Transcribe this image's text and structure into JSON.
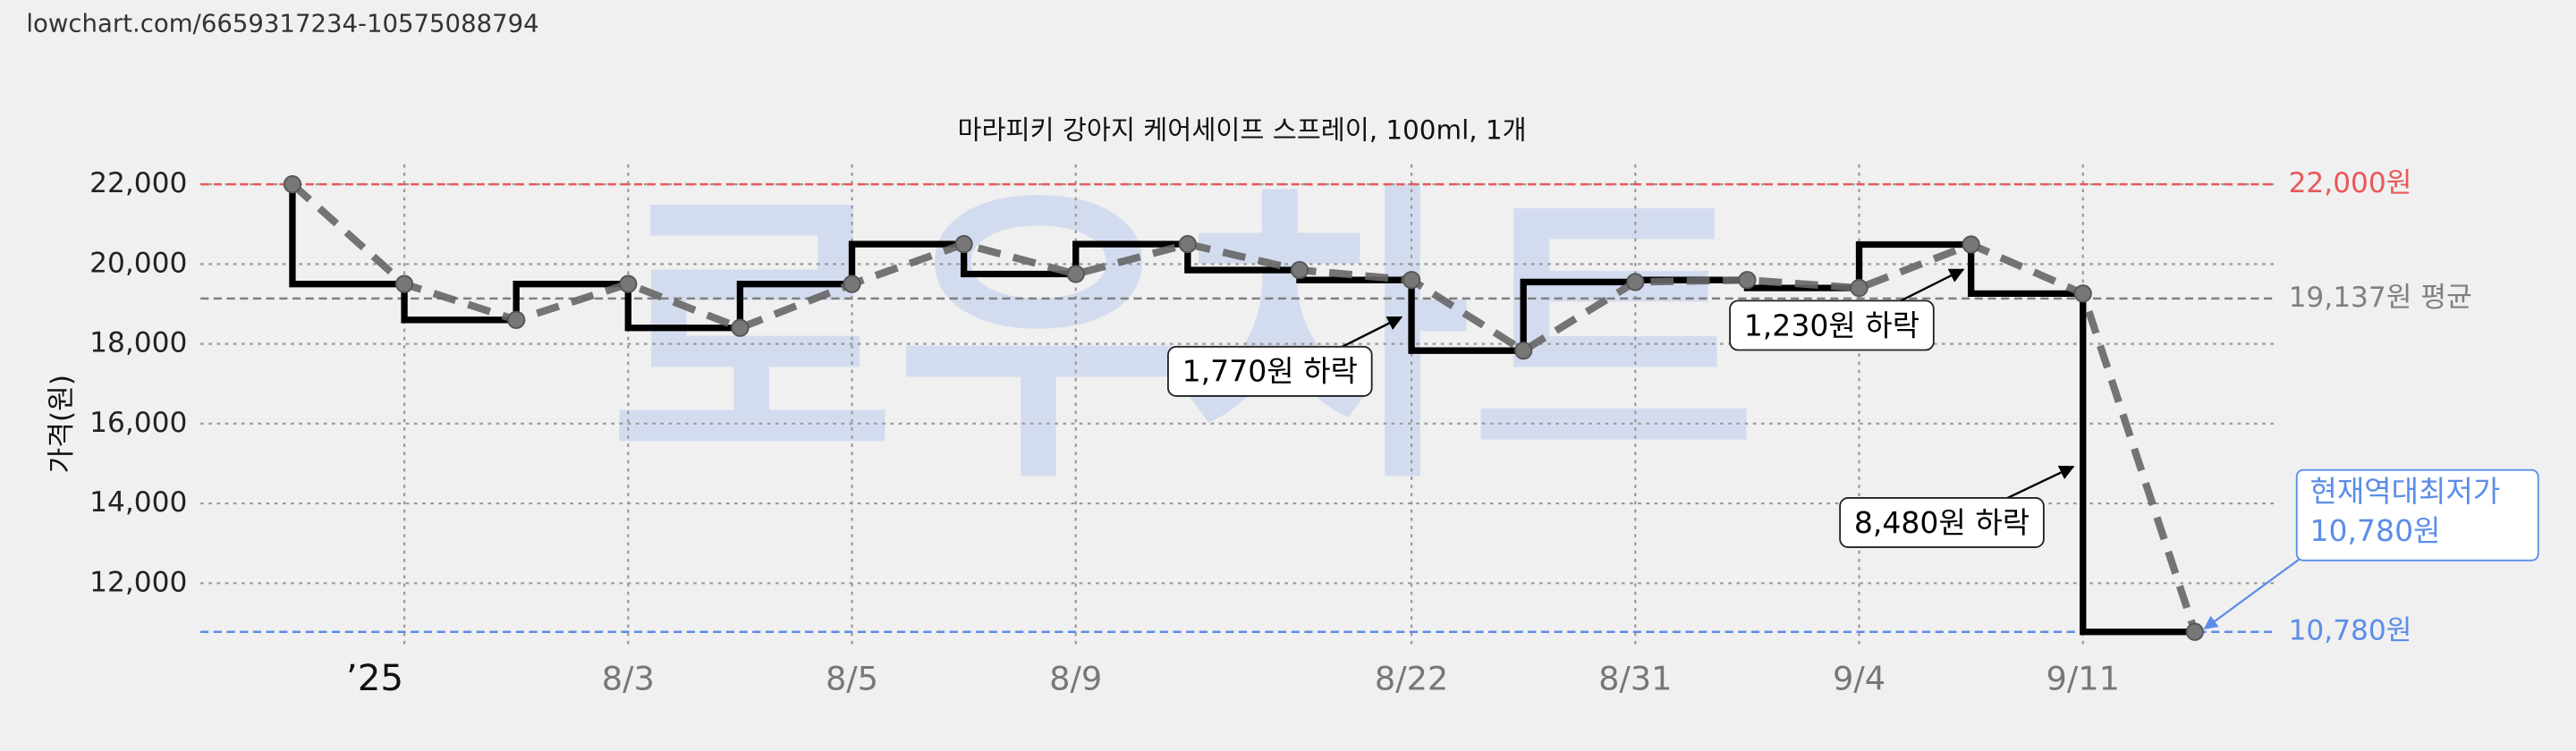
{
  "header": {
    "url": "lowchart.com/6659317234-10575088794"
  },
  "chart_data": {
    "type": "price-step",
    "title": "마라피키 강아지 케어세이프 스프레이, 100ml, 1개",
    "ylabel": "가격(원)",
    "watermark": "로우차트",
    "categories": [
      null,
      "’25",
      null,
      "8/3",
      null,
      "8/5",
      null,
      "8/9",
      null,
      null,
      "8/22",
      null,
      "8/31",
      null,
      "9/4",
      null,
      "9/11",
      null
    ],
    "values": [
      22000,
      19500,
      18600,
      19500,
      18400,
      19500,
      20500,
      19750,
      20500,
      19850,
      19600,
      17830,
      19550,
      19600,
      19400,
      20490,
      19260,
      10780
    ],
    "color": "#000000",
    "trend_color": "#666666",
    "ylim": [
      10430,
      22500
    ],
    "yticks": [
      {
        "value": 12000,
        "label": "12,000"
      },
      {
        "value": 14000,
        "label": "14,000"
      },
      {
        "value": 16000,
        "label": "16,000"
      },
      {
        "value": 18000,
        "label": "18,000"
      },
      {
        "value": 20000,
        "label": "20,000"
      },
      {
        "value": 22000,
        "label": "22,000"
      }
    ],
    "grid": true,
    "reference_lines": [
      {
        "value": 22000,
        "label": "22,000원",
        "color": "#e8585a"
      },
      {
        "value": 19137,
        "label": "19,137원 평균",
        "color": "#808080"
      },
      {
        "value": 10780,
        "label": "10,780원",
        "color": "#5b8de8"
      }
    ],
    "annotations": [
      "1,770원 하락",
      "1,230원 하락",
      "8,480원 하락"
    ],
    "callout": [
      "현재역대최저가",
      "10,780원"
    ]
  }
}
